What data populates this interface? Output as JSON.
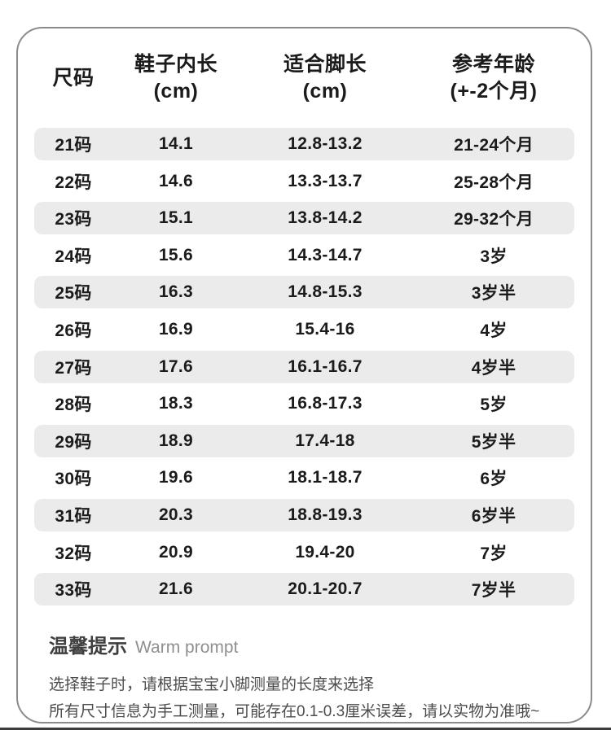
{
  "table": {
    "headers": [
      [
        "尺码"
      ],
      [
        "鞋子内长",
        "(cm)"
      ],
      [
        "适合脚长",
        "(cm)"
      ],
      [
        "参考年龄",
        "(+-2个月)"
      ]
    ],
    "rows": [
      [
        "21码",
        "14.1",
        "12.8-13.2",
        "21-24个月"
      ],
      [
        "22码",
        "14.6",
        "13.3-13.7",
        "25-28个月"
      ],
      [
        "23码",
        "15.1",
        "13.8-14.2",
        "29-32个月"
      ],
      [
        "24码",
        "15.6",
        "14.3-14.7",
        "3岁"
      ],
      [
        "25码",
        "16.3",
        "14.8-15.3",
        "3岁半"
      ],
      [
        "26码",
        "16.9",
        "15.4-16",
        "4岁"
      ],
      [
        "27码",
        "17.6",
        "16.1-16.7",
        "4岁半"
      ],
      [
        "28码",
        "18.3",
        "16.8-17.3",
        "5岁"
      ],
      [
        "29码",
        "18.9",
        "17.4-18",
        "5岁半"
      ],
      [
        "30码",
        "19.6",
        "18.1-18.7",
        "6岁"
      ],
      [
        "31码",
        "20.3",
        "18.8-19.3",
        "6岁半"
      ],
      [
        "32码",
        "20.9",
        "19.4-20",
        "7岁"
      ],
      [
        "33码",
        "21.6",
        "20.1-20.7",
        "7岁半"
      ]
    ]
  },
  "footer": {
    "title_zh": "温馨提示",
    "title_en": "Warm prompt",
    "line1": "选择鞋子时，请根据宝宝小脚测量的长度来选择",
    "line2": "所有尺寸信息为手工测量，可能存在0.1-0.3厘米误差，请以实物为准哦~"
  },
  "colors": {
    "stripe": "#ebebeb",
    "border": "#8b8b8b",
    "text_dark": "#1b1b1b",
    "title_zh": "#3f3f3f",
    "text_gray": "#8f8f8f",
    "text_body": "#4c4c4c",
    "bottom_bar": "#3c3c3c"
  }
}
